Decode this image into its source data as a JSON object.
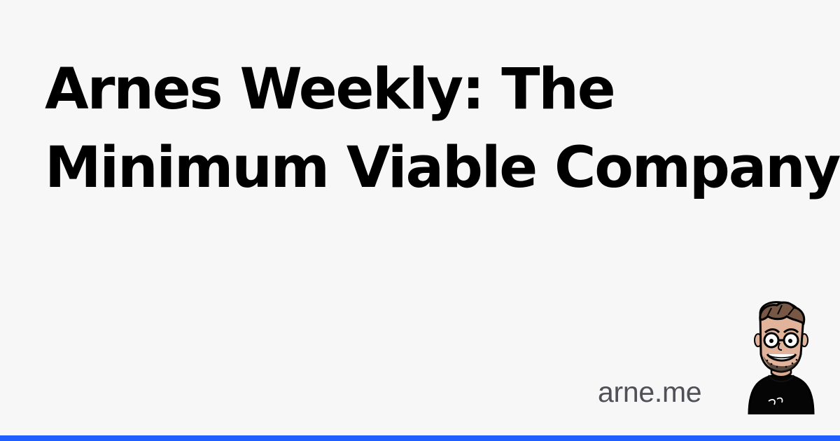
{
  "card": {
    "title_line_1": "Arnes Weekly: The",
    "title_line_2": "Minimum Viable Company",
    "site": "arne.me",
    "avatar_icon": "cartoon-portrait-icon",
    "colors": {
      "background": "#f7f7f8",
      "title": "#000000",
      "site": "#505058",
      "accent_bar": "#1f5fff"
    }
  }
}
